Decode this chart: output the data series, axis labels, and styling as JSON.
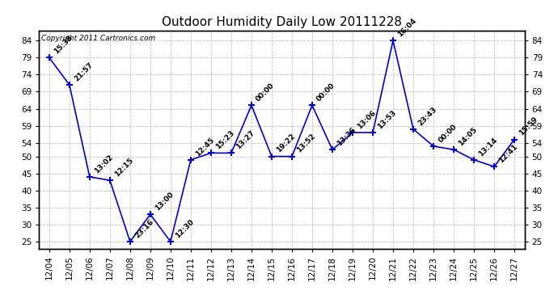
{
  "title": "Outdoor Humidity Daily Low 20111228",
  "copyright_text": "Copyright 2011 Cartronics.com",
  "x_labels": [
    "12/04",
    "12/05",
    "12/06",
    "12/07",
    "12/08",
    "12/09",
    "12/10",
    "12/11",
    "12/12",
    "12/13",
    "12/14",
    "12/15",
    "12/16",
    "12/17",
    "12/18",
    "12/19",
    "12/20",
    "12/21",
    "12/22",
    "12/23",
    "12/24",
    "12/25",
    "12/26",
    "12/27"
  ],
  "y_values": [
    79,
    71,
    44,
    43,
    25,
    33,
    25,
    49,
    51,
    51,
    65,
    50,
    50,
    65,
    52,
    57,
    57,
    84,
    58,
    53,
    52,
    49,
    47,
    55
  ],
  "point_labels": [
    "15:38",
    "21:57",
    "13:02",
    "12:15",
    "23:16",
    "13:00",
    "12:30",
    "12:45",
    "15:23",
    "13:27",
    "00:00",
    "19:22",
    "13:52",
    "00:00",
    "13:36",
    "13:06",
    "13:53",
    "16:04",
    "23:43",
    "00:00",
    "14:05",
    "13:14",
    "12:41",
    "15:59"
  ],
  "y_ticks": [
    25,
    30,
    35,
    40,
    45,
    50,
    54,
    59,
    64,
    69,
    74,
    79,
    84
  ],
  "line_color": "#0000cc",
  "marker_color": "#0000cc",
  "bg_color": "#ffffff",
  "grid_color": "#bbbbbb",
  "title_fontsize": 11,
  "label_fontsize": 6.5,
  "tick_fontsize": 7.5,
  "ylim": [
    23,
    87
  ]
}
